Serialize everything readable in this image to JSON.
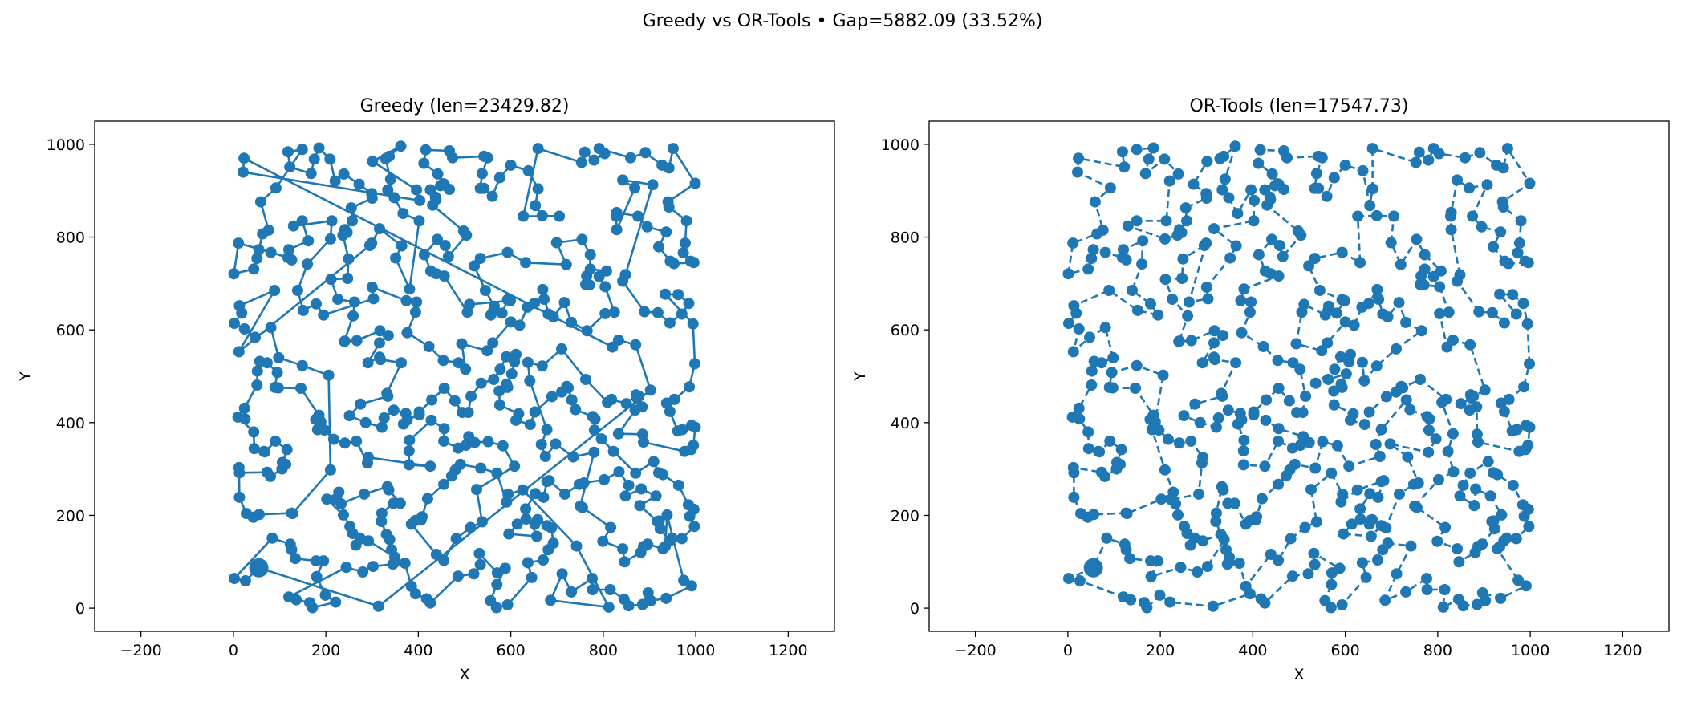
{
  "suptitle": "Greedy vs OR-Tools • Gap=5882.09 (33.52%)",
  "colors": {
    "series": "#1f77b4",
    "axes": "#000000",
    "background": "#ffffff"
  },
  "chart_data": [
    {
      "type": "line",
      "title": "Greedy (len=23429.82)",
      "xlabel": "X",
      "ylabel": "Y",
      "xlim": [
        -300,
        1300
      ],
      "ylim": [
        -50,
        1050
      ],
      "xticks": [
        -200,
        0,
        200,
        400,
        600,
        800,
        1000,
        1200
      ],
      "yticks": [
        0,
        200,
        400,
        600,
        800,
        1000
      ],
      "line_style": "solid",
      "marker": "circle",
      "grid": false,
      "depot": [
        55,
        87
      ],
      "n_points": 500
    },
    {
      "type": "line",
      "title": "OR-Tools (len=17547.73)",
      "xlabel": "X",
      "ylabel": "Y",
      "xlim": [
        -300,
        1300
      ],
      "ylim": [
        -50,
        1050
      ],
      "xticks": [
        -200,
        0,
        200,
        400,
        600,
        800,
        1000,
        1200
      ],
      "yticks": [
        0,
        200,
        400,
        600,
        800,
        1000
      ],
      "line_style": "dashed",
      "marker": "circle",
      "grid": false,
      "depot": [
        55,
        87
      ],
      "n_points": 500
    }
  ]
}
